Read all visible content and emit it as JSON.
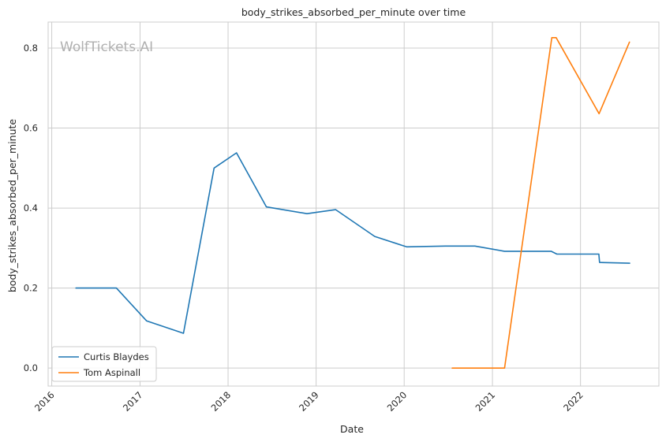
{
  "chart_data": {
    "type": "line",
    "title": "body_strikes_absorbed_per_minute over time",
    "xlabel": "Date",
    "ylabel": "body_strikes_absorbed_per_minute",
    "watermark": "WolfTickets.AI",
    "xlim": [
      "2015-12-17",
      "2022-11-22"
    ],
    "ylim": [
      -0.045,
      0.865
    ],
    "x_ticks": [
      "2016",
      "2017",
      "2018",
      "2019",
      "2020",
      "2021",
      "2022"
    ],
    "y_ticks": [
      "0.0",
      "0.2",
      "0.4",
      "0.6",
      "0.8"
    ],
    "grid": true,
    "legend_position": "lower-left",
    "series": [
      {
        "name": "Curtis Blaydes",
        "color": "#1f77b4",
        "points": [
          [
            "2016-04-10",
            0.2
          ],
          [
            "2016-09-25",
            0.2
          ],
          [
            "2017-01-28",
            0.118
          ],
          [
            "2017-06-30",
            0.087
          ],
          [
            "2017-11-04",
            0.5
          ],
          [
            "2018-02-05",
            0.538
          ],
          [
            "2018-06-09",
            0.403
          ],
          [
            "2018-11-24",
            0.386
          ],
          [
            "2019-03-23",
            0.396
          ],
          [
            "2019-09-01",
            0.329
          ],
          [
            "2020-01-11",
            0.303
          ],
          [
            "2020-06-20",
            0.305
          ],
          [
            "2020-10-20",
            0.305
          ],
          [
            "2021-02-20",
            0.292
          ],
          [
            "2021-09-01",
            0.292
          ],
          [
            "2021-09-25",
            0.285
          ],
          [
            "2022-03-18",
            0.285
          ],
          [
            "2022-03-21",
            0.264
          ],
          [
            "2022-07-24",
            0.262
          ]
        ]
      },
      {
        "name": "Tom Aspinall",
        "color": "#ff7f0e",
        "points": [
          [
            "2020-07-18",
            0.0
          ],
          [
            "2020-10-20",
            0.0
          ],
          [
            "2021-02-20",
            0.0
          ],
          [
            "2021-09-04",
            0.826
          ],
          [
            "2021-09-22",
            0.826
          ],
          [
            "2022-03-19",
            0.636
          ],
          [
            "2022-07-23",
            0.815
          ]
        ]
      }
    ]
  }
}
